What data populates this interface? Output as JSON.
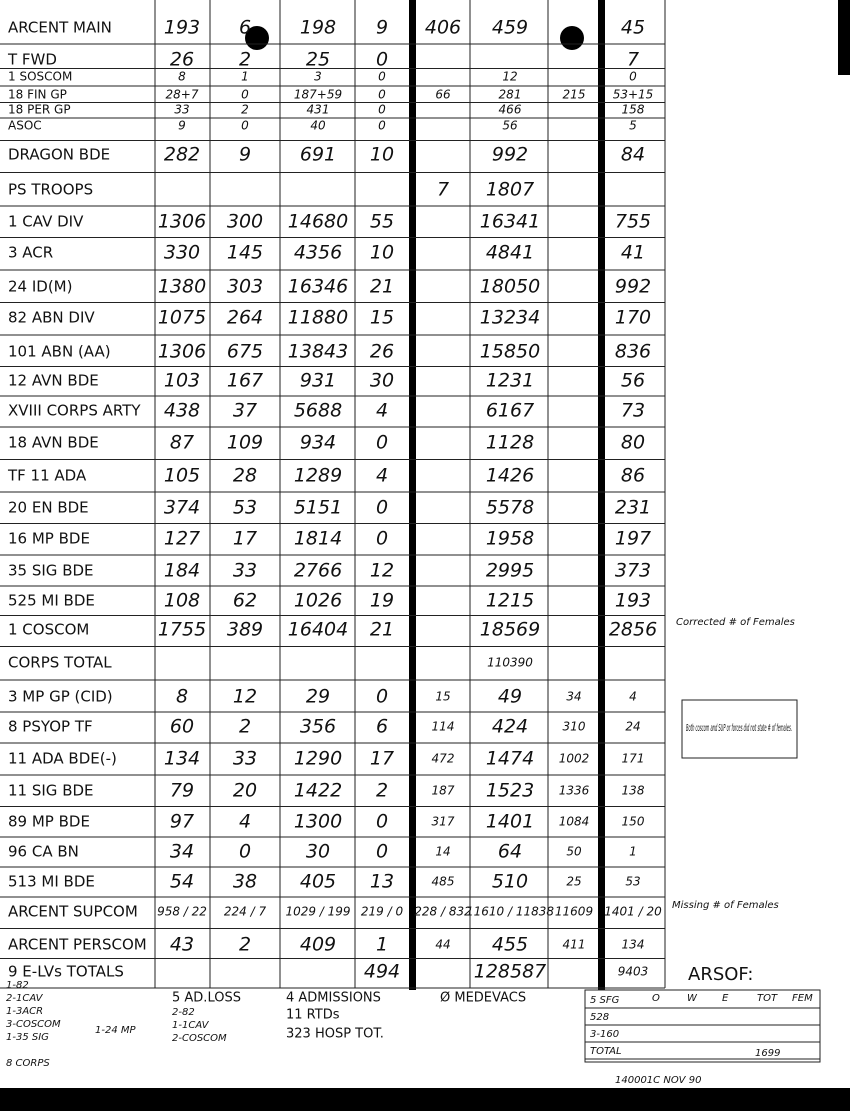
{
  "table": {
    "rows": [
      {
        "label": "ARCENT MAIN",
        "cells": [
          "193",
          "6",
          "198",
          "9",
          "406",
          "459",
          null,
          "45"
        ]
      },
      {
        "label": "T FWD",
        "cells": [
          "26",
          "2",
          "25",
          "0",
          null,
          null,
          null,
          "7"
        ]
      },
      {
        "label": "1 SOSCOM",
        "cells": [
          "8",
          "1",
          "3",
          "0",
          null,
          "12",
          null,
          "0"
        ]
      },
      {
        "label": "18 FIN GP",
        "cells": [
          "28+7",
          "0",
          "187+59",
          "0",
          "66",
          "281",
          "215",
          "53+15"
        ]
      },
      {
        "label": "18 PER GP",
        "cells": [
          "33",
          "2",
          "431",
          "0",
          null,
          "466",
          null,
          "158"
        ]
      },
      {
        "label": "ASOC",
        "cells": [
          "9",
          "0",
          "40",
          "0",
          null,
          "56",
          null,
          "5"
        ]
      },
      {
        "label": "DRAGON BDE",
        "cells": [
          "282",
          "9",
          "691",
          "10",
          null,
          "992",
          null,
          "84"
        ]
      },
      {
        "label": "PS TROOPS",
        "cells": [
          null,
          null,
          null,
          null,
          "7",
          "1807",
          null,
          null
        ]
      },
      {
        "label": "1 CAV DIV",
        "cells": [
          "1306",
          "300",
          "14680",
          "55",
          null,
          "16341",
          null,
          "755"
        ]
      },
      {
        "label": "3 ACR",
        "cells": [
          "330",
          "145",
          "4356",
          "10",
          null,
          "4841",
          null,
          "41"
        ]
      },
      {
        "label": "24 ID(M)",
        "cells": [
          "1380",
          "303",
          "16346",
          "21",
          null,
          "18050",
          null,
          "992"
        ]
      },
      {
        "label": "82 ABN DIV",
        "cells": [
          "1075",
          "264",
          "11880",
          "15",
          null,
          "13234",
          null,
          "170"
        ]
      },
      {
        "label": "101 ABN (AA)",
        "cells": [
          "1306",
          "675",
          "13843",
          "26",
          null,
          "15850",
          null,
          "836"
        ]
      },
      {
        "label": "12 AVN BDE",
        "cells": [
          "103",
          "167",
          "931",
          "30",
          null,
          "1231",
          null,
          "56"
        ]
      },
      {
        "label": "XVIII CORPS ARTY",
        "cells": [
          "438",
          "37",
          "5688",
          "4",
          null,
          "6167",
          null,
          "73"
        ]
      },
      {
        "label": "18 AVN BDE",
        "cells": [
          "87",
          "109",
          "934",
          "0",
          null,
          "1128",
          null,
          "80"
        ]
      },
      {
        "label": "TF 11 ADA",
        "cells": [
          "105",
          "28",
          "1289",
          "4",
          null,
          "1426",
          null,
          "86"
        ]
      },
      {
        "label": "20 EN BDE",
        "cells": [
          "374",
          "53",
          "5151",
          "0",
          null,
          "5578",
          null,
          "231"
        ]
      },
      {
        "label": "16 MP BDE",
        "cells": [
          "127",
          "17",
          "1814",
          "0",
          null,
          "1958",
          null,
          "197"
        ]
      },
      {
        "label": "35 SIG BDE",
        "cells": [
          "184",
          "33",
          "2766",
          "12",
          null,
          "2995",
          null,
          "373"
        ]
      },
      {
        "label": "525 MI BDE",
        "cells": [
          "108",
          "62",
          "1026",
          "19",
          null,
          "1215",
          null,
          "193"
        ]
      },
      {
        "label": "1 COSCOM",
        "cells": [
          "1755",
          "389",
          "16404",
          "21",
          null,
          "18569",
          null,
          "2856"
        ]
      },
      {
        "label": "CORPS TOTAL",
        "cells": [
          null,
          null,
          null,
          null,
          null,
          "110390",
          null,
          null
        ]
      },
      {
        "label": "3 MP GP (CID)",
        "cells": [
          "8",
          "12",
          "29",
          "0",
          "15",
          "49",
          "34",
          "4"
        ]
      },
      {
        "label": "8 PSYOP TF",
        "cells": [
          "60",
          "2",
          "356",
          "6",
          "114",
          "424",
          "310",
          "24"
        ]
      },
      {
        "label": "11 ADA BDE(-)",
        "cells": [
          "134",
          "33",
          "1290",
          "17",
          "472",
          "1474",
          "1002",
          "171"
        ]
      },
      {
        "label": "11 SIG BDE",
        "cells": [
          "79",
          "20",
          "1422",
          "2",
          "187",
          "1523",
          "1336",
          "138"
        ]
      },
      {
        "label": "89 MP BDE",
        "cells": [
          "97",
          "4",
          "1300",
          "0",
          "317",
          "1401",
          "1084",
          "150"
        ]
      },
      {
        "label": "96 CA BN",
        "cells": [
          "34",
          "0",
          "30",
          "0",
          "14",
          "64",
          "50",
          "1"
        ]
      },
      {
        "label": "513 MI BDE",
        "cells": [
          "54",
          "38",
          "405",
          "13",
          "485",
          "510",
          "25",
          "53"
        ]
      },
      {
        "label": "ARCENT SUPCOM",
        "cells": [
          "958 / 22",
          "224 / 7",
          "1029 / 199",
          "219 / 0",
          "228 / 832",
          "11610 / 11838",
          "11609",
          "1401 / 20"
        ]
      },
      {
        "label": "ARCENT PERSCOM",
        "cells": [
          "43",
          "2",
          "409",
          "1",
          "44",
          "455",
          "411",
          "134"
        ]
      },
      {
        "label": "9 E-LVs  TOTALS",
        "cells": [
          null,
          null,
          null,
          "494",
          null,
          "128587",
          null,
          "9403"
        ]
      }
    ],
    "notes": [
      "Corrected # of Females",
      "Both coscom and SUP or forces did not state # of females.",
      "Missing # of Females"
    ]
  },
  "footer": {
    "elvs": [
      "1-82",
      "2-1CAV",
      "1-3ACR",
      "3-COSCOM",
      "1-35 SIG",
      "1-24 MP",
      "8 CORPS"
    ],
    "losses": [
      "5  AD.LOSS",
      "2-82",
      "1-1CAV",
      "2-COSCOM",
      "4  ADMISSIONS",
      "11  RTDs",
      "323  HOSP TOT.",
      "Ø  MEDEVACS"
    ],
    "arsof": {
      "title": "ARSOF:",
      "headers": [
        "O",
        "W",
        "E",
        "TOT",
        "FEM"
      ],
      "rows": [
        "5 SFG",
        "528",
        "3-160",
        "TOTAL"
      ],
      "total": "1699"
    },
    "stamp": "140001C NOV 90"
  }
}
